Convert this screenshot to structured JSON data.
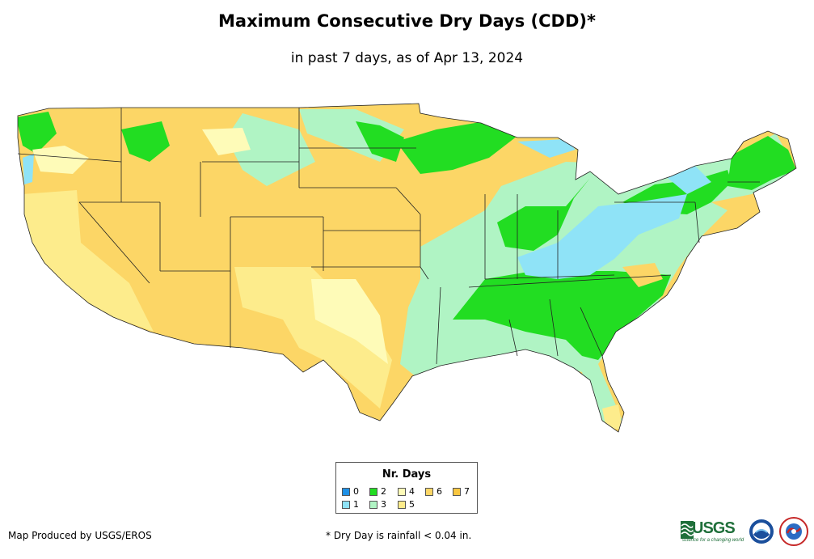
{
  "header": {
    "title": "Maximum Consecutive Dry Days (CDD)*",
    "subtitle": "in past 7 days, as of Apr 13, 2024"
  },
  "legend": {
    "title": "Nr. Days",
    "items": [
      {
        "label": "0",
        "color": "#1e90e6"
      },
      {
        "label": "1",
        "color": "#8fe3f7"
      },
      {
        "label": "2",
        "color": "#22dd22"
      },
      {
        "label": "3",
        "color": "#b0f4c4"
      },
      {
        "label": "4",
        "color": "#fefbb8"
      },
      {
        "label": "5",
        "color": "#fdec8c"
      },
      {
        "label": "6",
        "color": "#fcd666"
      },
      {
        "label": "7",
        "color": "#f8c640"
      }
    ]
  },
  "footer": {
    "credit": "Map Produced by USGS/EROS",
    "footnote": "* Dry Day is rainfall < 0.04 in.",
    "usgs_logo": "USGS",
    "usgs_tagline": "science for a changing world",
    "logos": [
      "usgs-logo",
      "noaa-logo",
      "nws-logo"
    ]
  }
}
